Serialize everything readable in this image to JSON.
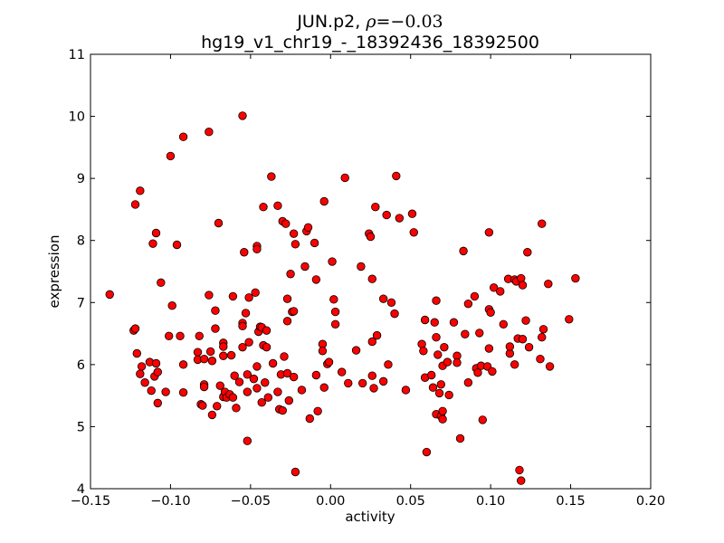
{
  "chart_data": {
    "type": "scatter",
    "title_prefix": "JUN.p2, ",
    "title_rho_symbol": "ρ",
    "title_rho_value": "=−0.03",
    "subtitle": "hg19_v1_chr19_-_18392436_18392500",
    "xlabel": "activity",
    "ylabel": "expression",
    "xlim": [
      -0.15,
      0.2
    ],
    "ylim": [
      4,
      11
    ],
    "xticks": [
      -0.15,
      -0.1,
      -0.05,
      0.0,
      0.05,
      0.1,
      0.15,
      0.2
    ],
    "xtick_labels": [
      "−0.15",
      "−0.10",
      "−0.05",
      "0.00",
      "0.05",
      "0.10",
      "0.15",
      "0.20"
    ],
    "yticks": [
      4,
      5,
      6,
      7,
      8,
      9,
      10,
      11
    ],
    "ytick_labels": [
      "4",
      "5",
      "6",
      "7",
      "8",
      "9",
      "10",
      "11"
    ],
    "grid": false,
    "legend": "none",
    "marker_color": "#ff0000",
    "marker_edge_color": "#000000",
    "series": [
      {
        "points": [
          [
            -0.138,
            7.13
          ],
          [
            -0.122,
            8.58
          ],
          [
            -0.119,
            8.8
          ],
          [
            -0.123,
            6.55
          ],
          [
            -0.122,
            6.58
          ],
          [
            -0.121,
            6.18
          ],
          [
            -0.119,
            5.85
          ],
          [
            -0.118,
            5.97
          ],
          [
            -0.116,
            5.71
          ],
          [
            -0.113,
            6.04
          ],
          [
            -0.112,
            5.58
          ],
          [
            -0.111,
            7.95
          ],
          [
            -0.109,
            8.12
          ],
          [
            -0.109,
            6.02
          ],
          [
            -0.11,
            5.81
          ],
          [
            -0.108,
            5.88
          ],
          [
            -0.108,
            5.38
          ],
          [
            -0.106,
            7.32
          ],
          [
            -0.103,
            5.56
          ],
          [
            -0.1,
            9.36
          ],
          [
            -0.101,
            6.46
          ],
          [
            -0.099,
            6.95
          ],
          [
            -0.096,
            7.93
          ],
          [
            -0.094,
            6.46
          ],
          [
            -0.092,
            9.67
          ],
          [
            -0.092,
            6.0
          ],
          [
            -0.092,
            5.55
          ],
          [
            -0.083,
            6.2
          ],
          [
            -0.083,
            6.08
          ],
          [
            -0.082,
            6.46
          ],
          [
            -0.081,
            5.36
          ],
          [
            -0.08,
            5.34
          ],
          [
            -0.079,
            6.09
          ],
          [
            -0.079,
            5.68
          ],
          [
            -0.079,
            5.64
          ],
          [
            -0.076,
            9.75
          ],
          [
            -0.076,
            7.12
          ],
          [
            -0.075,
            6.21
          ],
          [
            -0.074,
            6.06
          ],
          [
            -0.074,
            5.19
          ],
          [
            -0.072,
            6.87
          ],
          [
            -0.072,
            6.58
          ],
          [
            -0.071,
            5.33
          ],
          [
            -0.07,
            8.28
          ],
          [
            -0.069,
            5.66
          ],
          [
            -0.067,
            6.35
          ],
          [
            -0.067,
            6.29
          ],
          [
            -0.067,
            6.14
          ],
          [
            -0.067,
            5.48
          ],
          [
            -0.066,
            5.56
          ],
          [
            -0.065,
            5.47
          ],
          [
            -0.063,
            5.52
          ],
          [
            -0.062,
            6.15
          ],
          [
            -0.061,
            7.1
          ],
          [
            -0.061,
            5.47
          ],
          [
            -0.06,
            5.82
          ],
          [
            -0.059,
            5.3
          ],
          [
            -0.057,
            5.72
          ],
          [
            -0.055,
            10.01
          ],
          [
            -0.055,
            6.67
          ],
          [
            -0.055,
            6.62
          ],
          [
            -0.055,
            6.28
          ],
          [
            -0.054,
            7.81
          ],
          [
            -0.053,
            6.83
          ],
          [
            -0.052,
            5.56
          ],
          [
            -0.052,
            4.77
          ],
          [
            -0.052,
            5.84
          ],
          [
            -0.051,
            7.08
          ],
          [
            -0.051,
            6.36
          ],
          [
            -0.048,
            5.77
          ],
          [
            -0.047,
            7.16
          ],
          [
            -0.046,
            7.91
          ],
          [
            -0.046,
            7.86
          ],
          [
            -0.046,
            5.97
          ],
          [
            -0.046,
            5.62
          ],
          [
            -0.045,
            6.53
          ],
          [
            -0.044,
            6.61
          ],
          [
            -0.043,
            5.39
          ],
          [
            -0.043,
            6.6
          ],
          [
            -0.042,
            8.54
          ],
          [
            -0.042,
            6.31
          ],
          [
            -0.041,
            5.71
          ],
          [
            -0.04,
            6.28
          ],
          [
            -0.04,
            6.55
          ],
          [
            -0.039,
            5.47
          ],
          [
            -0.037,
            9.03
          ],
          [
            -0.036,
            6.02
          ],
          [
            -0.033,
            8.56
          ],
          [
            -0.033,
            5.56
          ],
          [
            -0.032,
            5.28
          ],
          [
            -0.031,
            5.84
          ],
          [
            -0.03,
            5.26
          ],
          [
            -0.03,
            8.31
          ],
          [
            -0.029,
            6.13
          ],
          [
            -0.028,
            8.27
          ],
          [
            -0.027,
            5.86
          ],
          [
            -0.027,
            7.06
          ],
          [
            -0.027,
            6.7
          ],
          [
            -0.026,
            5.42
          ],
          [
            -0.025,
            7.46
          ],
          [
            -0.024,
            6.85
          ],
          [
            -0.023,
            8.11
          ],
          [
            -0.023,
            6.86
          ],
          [
            -0.023,
            5.8
          ],
          [
            -0.022,
            7.94
          ],
          [
            -0.022,
            4.27
          ],
          [
            -0.018,
            5.59
          ],
          [
            -0.016,
            7.58
          ],
          [
            -0.015,
            8.15
          ],
          [
            -0.014,
            8.21
          ],
          [
            -0.013,
            5.13
          ],
          [
            -0.01,
            7.96
          ],
          [
            -0.009,
            5.83
          ],
          [
            -0.009,
            7.37
          ],
          [
            -0.008,
            5.25
          ],
          [
            -0.005,
            6.33
          ],
          [
            -0.005,
            6.22
          ],
          [
            -0.004,
            8.63
          ],
          [
            -0.004,
            5.63
          ],
          [
            -0.002,
            6.01
          ],
          [
            -0.001,
            6.04
          ],
          [
            0.001,
            7.66
          ],
          [
            0.002,
            7.05
          ],
          [
            0.003,
            6.85
          ],
          [
            0.003,
            6.65
          ],
          [
            0.007,
            5.88
          ],
          [
            0.009,
            9.01
          ],
          [
            0.011,
            5.7
          ],
          [
            0.016,
            6.23
          ],
          [
            0.019,
            7.58
          ],
          [
            0.02,
            5.7
          ],
          [
            0.024,
            8.11
          ],
          [
            0.025,
            8.06
          ],
          [
            0.026,
            7.38
          ],
          [
            0.026,
            6.37
          ],
          [
            0.026,
            5.82
          ],
          [
            0.027,
            5.62
          ],
          [
            0.028,
            8.54
          ],
          [
            0.029,
            6.47
          ],
          [
            0.033,
            7.06
          ],
          [
            0.033,
            5.73
          ],
          [
            0.035,
            8.41
          ],
          [
            0.036,
            6.0
          ],
          [
            0.038,
            7.0
          ],
          [
            0.04,
            6.82
          ],
          [
            0.041,
            9.04
          ],
          [
            0.043,
            8.36
          ],
          [
            0.047,
            5.59
          ],
          [
            0.051,
            8.43
          ],
          [
            0.052,
            8.13
          ],
          [
            0.057,
            6.33
          ],
          [
            0.058,
            6.22
          ],
          [
            0.059,
            5.79
          ],
          [
            0.059,
            6.72
          ],
          [
            0.06,
            4.59
          ],
          [
            0.063,
            5.83
          ],
          [
            0.064,
            5.63
          ],
          [
            0.065,
            6.68
          ],
          [
            0.066,
            7.03
          ],
          [
            0.066,
            6.44
          ],
          [
            0.066,
            5.2
          ],
          [
            0.067,
            6.16
          ],
          [
            0.068,
            5.54
          ],
          [
            0.069,
            5.17
          ],
          [
            0.069,
            5.68
          ],
          [
            0.07,
            5.98
          ],
          [
            0.07,
            5.25
          ],
          [
            0.07,
            5.12
          ],
          [
            0.071,
            6.28
          ],
          [
            0.073,
            6.04
          ],
          [
            0.074,
            5.51
          ],
          [
            0.077,
            6.68
          ],
          [
            0.079,
            6.14
          ],
          [
            0.079,
            6.03
          ],
          [
            0.081,
            4.81
          ],
          [
            0.083,
            7.83
          ],
          [
            0.084,
            6.49
          ],
          [
            0.086,
            5.71
          ],
          [
            0.086,
            6.98
          ],
          [
            0.09,
            7.1
          ],
          [
            0.091,
            5.94
          ],
          [
            0.092,
            5.87
          ],
          [
            0.093,
            6.51
          ],
          [
            0.094,
            5.98
          ],
          [
            0.095,
            5.11
          ],
          [
            0.098,
            5.97
          ],
          [
            0.099,
            8.13
          ],
          [
            0.099,
            6.26
          ],
          [
            0.099,
            6.89
          ],
          [
            0.1,
            6.84
          ],
          [
            0.101,
            5.89
          ],
          [
            0.102,
            7.24
          ],
          [
            0.106,
            7.18
          ],
          [
            0.108,
            6.65
          ],
          [
            0.111,
            7.38
          ],
          [
            0.112,
            6.18
          ],
          [
            0.112,
            6.29
          ],
          [
            0.115,
            7.37
          ],
          [
            0.115,
            6.0
          ],
          [
            0.116,
            7.34
          ],
          [
            0.117,
            6.42
          ],
          [
            0.118,
            4.3
          ],
          [
            0.119,
            4.13
          ],
          [
            0.119,
            7.39
          ],
          [
            0.12,
            7.28
          ],
          [
            0.12,
            6.41
          ],
          [
            0.122,
            6.71
          ],
          [
            0.123,
            7.81
          ],
          [
            0.124,
            6.28
          ],
          [
            0.131,
            6.09
          ],
          [
            0.132,
            8.27
          ],
          [
            0.132,
            6.44
          ],
          [
            0.133,
            6.57
          ],
          [
            0.136,
            7.3
          ],
          [
            0.137,
            5.97
          ],
          [
            0.149,
            6.73
          ],
          [
            0.153,
            7.39
          ]
        ]
      }
    ]
  }
}
